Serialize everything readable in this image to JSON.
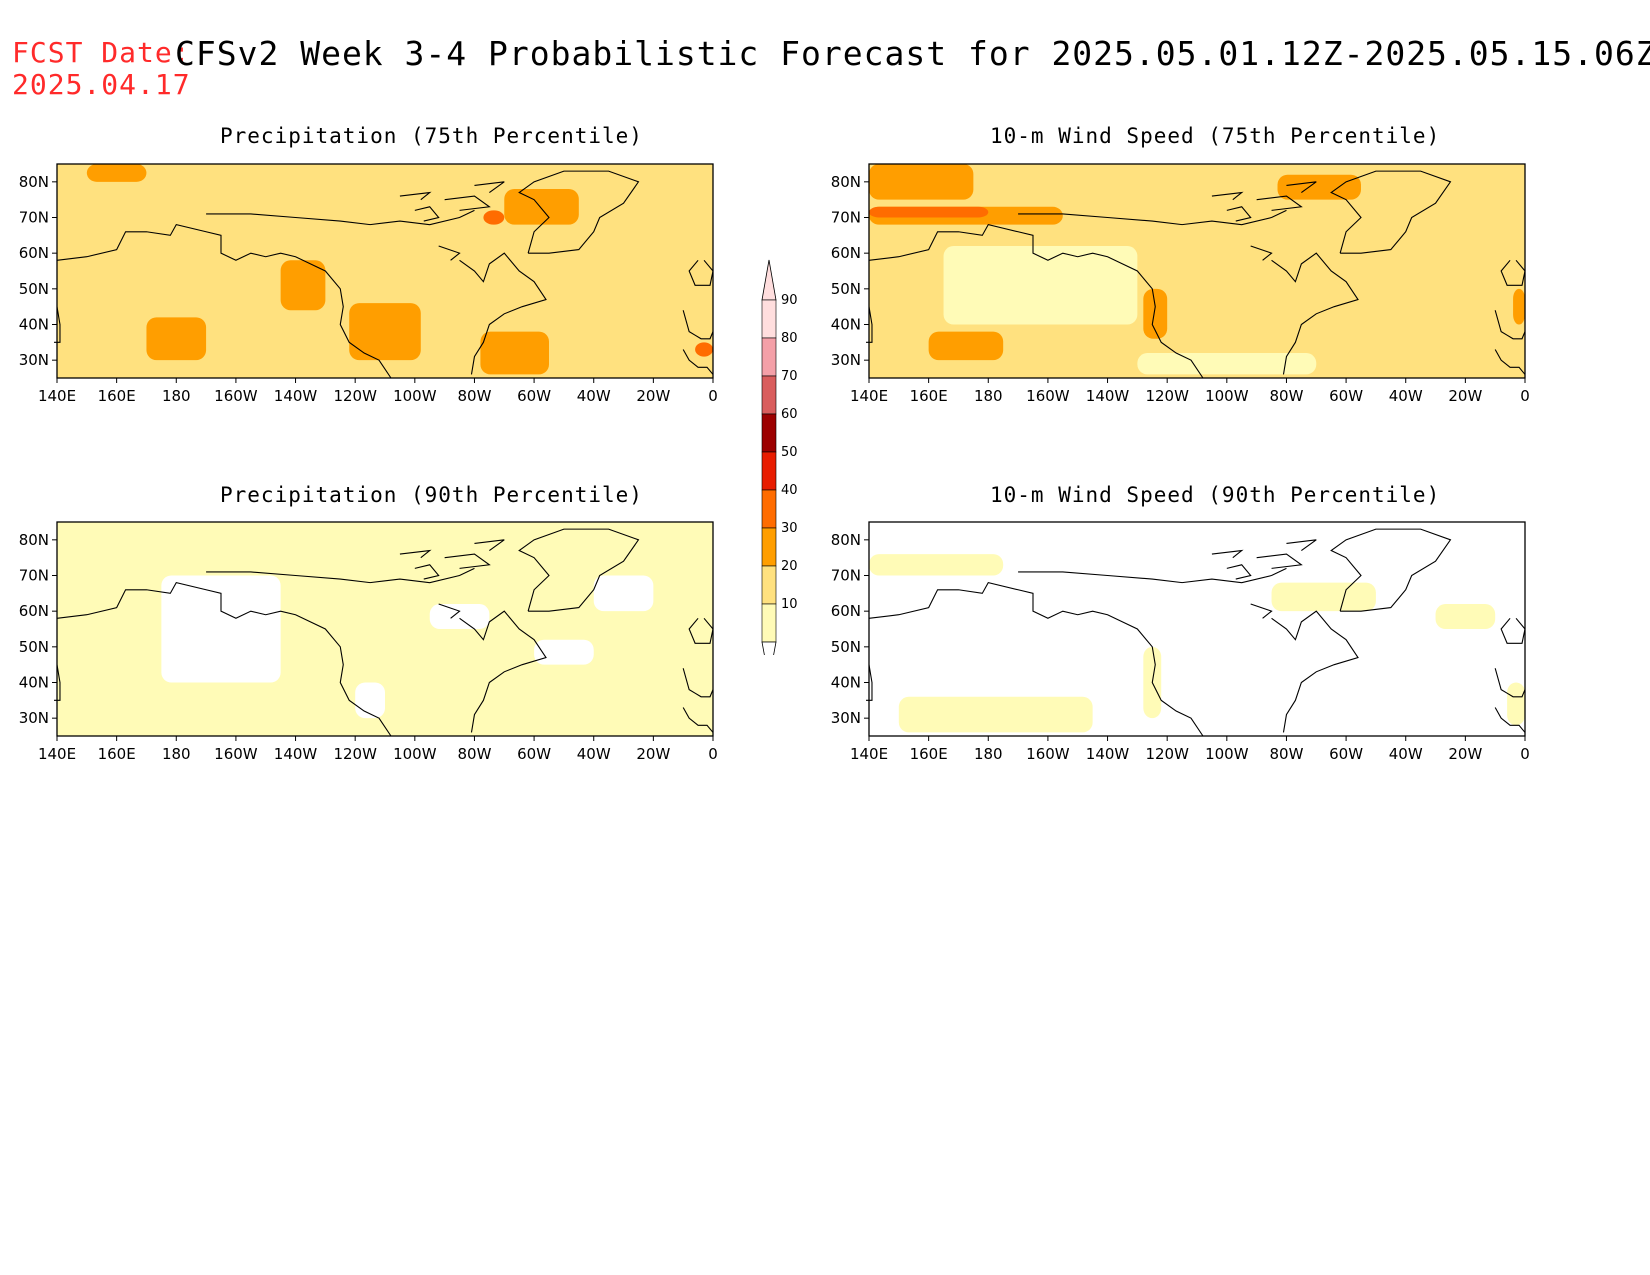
{
  "header": {
    "fcst_label": "FCST Date:",
    "fcst_date": "2025.04.17",
    "title": "CFSv2 Week 3-4 Probabilistic Forecast for 2025.05.01.12Z-2025.05.15.06Z"
  },
  "panels": [
    {
      "title": "Precipitation (75th Percentile)",
      "base_level": 20,
      "patches": [
        {
          "level": 30,
          "lon": [
            170,
            190
          ],
          "lat": [
            30,
            42
          ]
        },
        {
          "level": 30,
          "lon": [
            215,
            230
          ],
          "lat": [
            44,
            58
          ]
        },
        {
          "level": 30,
          "lon": [
            238,
            262
          ],
          "lat": [
            30,
            46
          ]
        },
        {
          "level": 30,
          "lon": [
            282,
            305
          ],
          "lat": [
            26,
            38
          ]
        },
        {
          "level": 30,
          "lon": [
            150,
            170
          ],
          "lat": [
            80,
            85
          ]
        },
        {
          "level": 30,
          "lon": [
            290,
            315
          ],
          "lat": [
            68,
            78
          ]
        },
        {
          "level": 40,
          "lon": [
            283,
            290
          ],
          "lat": [
            68,
            72
          ]
        },
        {
          "level": 40,
          "lon": [
            354,
            360
          ],
          "lat": [
            31,
            35
          ]
        }
      ]
    },
    {
      "title": "10-m Wind Speed (75th Percentile)",
      "base_level": 20,
      "patches": [
        {
          "level": 30,
          "lon": [
            140,
            175
          ],
          "lat": [
            75,
            85
          ]
        },
        {
          "level": 30,
          "lon": [
            140,
            205
          ],
          "lat": [
            68,
            73
          ]
        },
        {
          "level": 40,
          "lon": [
            140,
            180
          ],
          "lat": [
            70,
            73
          ]
        },
        {
          "level": 30,
          "lon": [
            160,
            185
          ],
          "lat": [
            30,
            38
          ]
        },
        {
          "level": 30,
          "lon": [
            232,
            240
          ],
          "lat": [
            36,
            50
          ]
        },
        {
          "level": 30,
          "lon": [
            277,
            305
          ],
          "lat": [
            75,
            82
          ]
        },
        {
          "level": 30,
          "lon": [
            356,
            360
          ],
          "lat": [
            40,
            50
          ]
        },
        {
          "level": 10,
          "lon": [
            165,
            230
          ],
          "lat": [
            40,
            62
          ]
        },
        {
          "level": 10,
          "lon": [
            230,
            290
          ],
          "lat": [
            26,
            32
          ]
        }
      ]
    },
    {
      "title": "Precipitation (90th Percentile)",
      "base_level": 10,
      "patches": [
        {
          "level": 0,
          "lon": [
            175,
            215
          ],
          "lat": [
            40,
            70
          ]
        },
        {
          "level": 0,
          "lon": [
            240,
            250
          ],
          "lat": [
            30,
            40
          ]
        },
        {
          "level": 0,
          "lon": [
            265,
            285
          ],
          "lat": [
            55,
            62
          ]
        },
        {
          "level": 0,
          "lon": [
            300,
            320
          ],
          "lat": [
            45,
            52
          ]
        },
        {
          "level": 0,
          "lon": [
            320,
            340
          ],
          "lat": [
            60,
            70
          ]
        }
      ]
    },
    {
      "title": "10-m Wind Speed (90th Percentile)",
      "base_level": 0,
      "patches": [
        {
          "level": 10,
          "lon": [
            140,
            185
          ],
          "lat": [
            70,
            76
          ]
        },
        {
          "level": 10,
          "lon": [
            150,
            215
          ],
          "lat": [
            26,
            36
          ]
        },
        {
          "level": 10,
          "lon": [
            232,
            238
          ],
          "lat": [
            30,
            50
          ]
        },
        {
          "level": 10,
          "lon": [
            275,
            310
          ],
          "lat": [
            60,
            68
          ]
        },
        {
          "level": 10,
          "lon": [
            330,
            350
          ],
          "lat": [
            55,
            62
          ]
        },
        {
          "level": 10,
          "lon": [
            354,
            360
          ],
          "lat": [
            28,
            40
          ]
        }
      ]
    }
  ],
  "map": {
    "lon_range": [
      140,
      360
    ],
    "lat_range": [
      25,
      85
    ],
    "lon_ticks": [
      "140E",
      "160E",
      "180",
      "160W",
      "140W",
      "120W",
      "100W",
      "80W",
      "60W",
      "40W",
      "20W",
      "0"
    ],
    "lat_ticks": [
      "80N",
      "70N",
      "60N",
      "50N",
      "40N",
      "30N"
    ]
  },
  "colorbar": {
    "labels": [
      "90",
      "80",
      "70",
      "60",
      "50",
      "40",
      "30",
      "20",
      "10"
    ],
    "colors": [
      "#ffdede",
      "#f4a0a8",
      "#d95d5d",
      "#9c0000",
      "#e81c00",
      "#ff6c00",
      "#ff9e00",
      "#ffe17f",
      "#fffbb7"
    ]
  },
  "level_colors": {
    "0": "#ffffff",
    "10": "#fffbb7",
    "20": "#ffe17f",
    "30": "#ff9e00",
    "40": "#ff6c00",
    "50": "#e81c00"
  }
}
